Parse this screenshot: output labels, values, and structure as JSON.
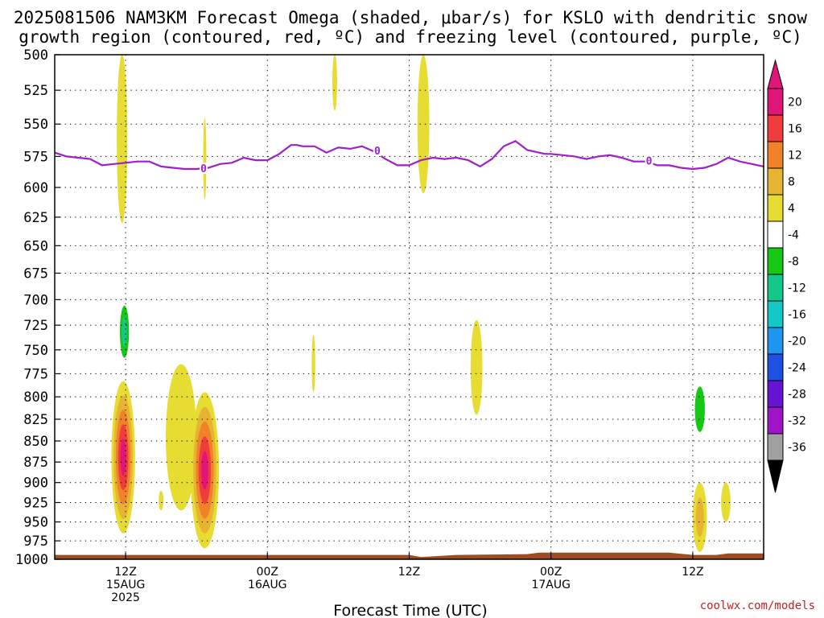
{
  "title_line1": "2025081506 NAM3KM Forecast Omega (shaded, μbar/s) for KSLO with dendritic snow",
  "title_line2": "growth region (contoured, red, ºC) and freezing level (contoured, purple, ºC)",
  "xlabel": "Forecast Time (UTC)",
  "credit": "coolwx.com/models",
  "colors": {
    "freezing_line": "#a020c8",
    "terrain": "#9c4e22",
    "grid": "#000000"
  },
  "chart_data": {
    "type": "heatmap",
    "title": "2025081506 NAM3KM Forecast Omega (shaded, μbar/s) for KSLO with dendritic snow growth region (contoured, red, ºC) and freezing level (contoured, purple, ºC)",
    "xlabel": "Forecast Time (UTC)",
    "ylabel": "",
    "x_range_hours": [
      6,
      66
    ],
    "y_range_hPa": [
      500,
      1000
    ],
    "y_scale": "log-pressure (inverted)",
    "y_ticks": [
      "500",
      "525",
      "550",
      "575",
      "600",
      "625",
      "650",
      "675",
      "700",
      "725",
      "750",
      "775",
      "800",
      "825",
      "850",
      "875",
      "900",
      "925",
      "950",
      "975",
      "1000"
    ],
    "x_ticks": [
      {
        "hour": 12,
        "lines": [
          "12Z",
          "15AUG",
          "2025"
        ]
      },
      {
        "hour": 24,
        "lines": [
          "00Z",
          "16AUG"
        ]
      },
      {
        "hour": 36,
        "lines": [
          "12Z"
        ]
      },
      {
        "hour": 48,
        "lines": [
          "00Z",
          "17AUG"
        ]
      },
      {
        "hour": 60,
        "lines": [
          "12Z"
        ]
      }
    ],
    "grid": true,
    "colorbar": {
      "labels": [
        "20",
        "16",
        "12",
        "8",
        "4",
        "-4",
        "-8",
        "-12",
        "-16",
        "-20",
        "-24",
        "-28",
        "-32",
        "-36"
      ],
      "colors": [
        "#e0157a",
        "#f03c3c",
        "#f08228",
        "#e6b432",
        "#e6dc32",
        "#ffffff",
        "#14c814",
        "#14c88c",
        "#14c8c8",
        "#1e96f0",
        "#1e50e6",
        "#6414d2",
        "#a014c8",
        "#a0a0a0"
      ],
      "top_arrow_color": "#e0157a",
      "bottom_arrow_color": "#000000"
    },
    "freezing_level": {
      "label": "0",
      "hours": [
        6,
        7,
        8,
        9,
        10,
        11,
        12,
        13,
        14,
        15,
        16,
        17,
        18,
        19,
        20,
        21,
        22,
        23,
        24,
        25,
        26,
        26.5,
        27,
        28,
        29,
        30,
        31,
        32,
        33,
        34,
        35,
        36,
        37,
        38,
        39,
        40,
        41,
        42,
        43,
        44,
        45,
        46,
        47,
        47.5,
        48,
        49,
        50,
        51,
        52,
        53,
        54,
        55,
        56,
        57,
        58,
        59,
        60,
        61,
        62,
        63,
        64,
        65,
        66
      ],
      "pressure_hPa": [
        572,
        575,
        576,
        577,
        582,
        581,
        580,
        579,
        579,
        583,
        584,
        585,
        585,
        584,
        581,
        580,
        576,
        578,
        578,
        573,
        566,
        566,
        567,
        567,
        572,
        568,
        569,
        567,
        571,
        577,
        582,
        582,
        578,
        576,
        577,
        576,
        578,
        583,
        577,
        567,
        563,
        570,
        572,
        573,
        573,
        574,
        575,
        577,
        575,
        574,
        576,
        579,
        579,
        582,
        582,
        584,
        585,
        584,
        581,
        576,
        579,
        581,
        583
      ]
    },
    "terrain_top_hPa": [
      [
        6,
        994
      ],
      [
        36,
        994
      ],
      [
        37,
        997
      ],
      [
        40,
        994
      ],
      [
        46,
        993
      ],
      [
        47,
        991
      ],
      [
        58,
        991
      ],
      [
        60,
        994
      ],
      [
        62,
        994
      ],
      [
        63,
        992
      ],
      [
        66,
        992
      ]
    ],
    "omega_regions": [
      {
        "hour": 11.7,
        "p_top": 500,
        "p_bot": 630,
        "half_width_h": 0.45,
        "levels": [
          "4"
        ]
      },
      {
        "hour": 18.7,
        "p_top": 545,
        "p_bot": 610,
        "half_width_h": 0.12,
        "levels": [
          "4"
        ]
      },
      {
        "hour": 29.7,
        "p_top": 500,
        "p_bot": 540,
        "half_width_h": 0.2,
        "levels": [
          "4"
        ]
      },
      {
        "hour": 37.2,
        "p_top": 500,
        "p_bot": 605,
        "half_width_h": 0.5,
        "levels": [
          "4"
        ]
      },
      {
        "hour": 17.6,
        "p_top": 634,
        "p_bot": 690,
        "half_width_h": 0.55,
        "levels": [
          "-4"
        ]
      },
      {
        "hour": 11.9,
        "p_top": 695,
        "p_bot": 770,
        "half_width_h": 0.55,
        "levels": [
          "-4",
          "-8",
          "-12"
        ]
      },
      {
        "hour": 13.8,
        "p_top": 740,
        "p_bot": 835,
        "half_width_h": 0.25,
        "levels": [
          "-4"
        ]
      },
      {
        "hour": 17.9,
        "p_top": 745,
        "p_bot": 760,
        "half_width_h": 0.15,
        "levels": [
          "-4"
        ]
      },
      {
        "hour": 27.9,
        "p_top": 735,
        "p_bot": 795,
        "half_width_h": 0.15,
        "levels": [
          "4"
        ]
      },
      {
        "hour": 41.7,
        "p_top": 720,
        "p_bot": 820,
        "half_width_h": 0.5,
        "levels": [
          "4"
        ]
      },
      {
        "hour": 40.0,
        "p_top": 820,
        "p_bot": 885,
        "half_width_h": 0.12,
        "levels": [
          "-4"
        ]
      },
      {
        "hour": 60.6,
        "p_top": 770,
        "p_bot": 860,
        "half_width_h": 0.75,
        "levels": [
          "-4",
          "-8"
        ]
      },
      {
        "hour": 11.8,
        "p_top": 783,
        "p_bot": 965,
        "half_width_h": 1.0,
        "levels": [
          "4",
          "8",
          "12",
          "16",
          "20"
        ]
      },
      {
        "hour": 16.7,
        "p_top": 765,
        "p_bot": 935,
        "half_width_h": 1.3,
        "levels": [
          "4"
        ]
      },
      {
        "hour": 15.0,
        "p_top": 910,
        "p_bot": 935,
        "half_width_h": 0.2,
        "levels": [
          "4"
        ]
      },
      {
        "hour": 18.7,
        "p_top": 795,
        "p_bot": 985,
        "half_width_h": 1.2,
        "levels": [
          "4",
          "8",
          "12",
          "16",
          "20"
        ]
      },
      {
        "hour": 60.6,
        "p_top": 900,
        "p_bot": 990,
        "half_width_h": 0.6,
        "levels": [
          "4",
          "8"
        ]
      },
      {
        "hour": 62.8,
        "p_top": 900,
        "p_bot": 950,
        "half_width_h": 0.4,
        "levels": [
          "4"
        ]
      }
    ]
  }
}
